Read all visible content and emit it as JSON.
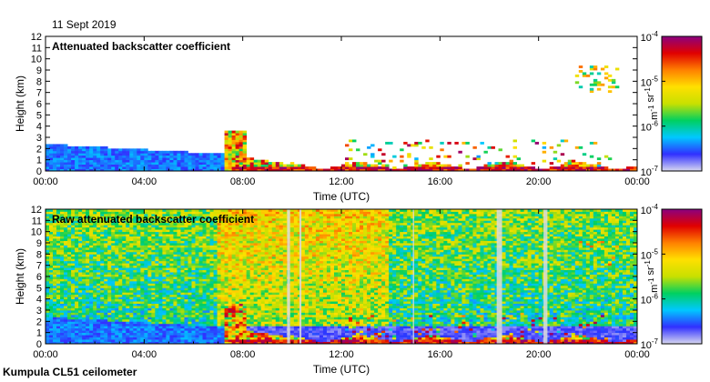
{
  "header": {
    "date": "11 Sept 2019"
  },
  "footer": {
    "site": "Kumpula CL51 ceilometer"
  },
  "colors": {
    "axis": "#000000",
    "background": "#ffffff",
    "colormap": [
      "#d8d8f0",
      "#3030ff",
      "#00c8ff",
      "#00d060",
      "#c8e000",
      "#ffe000",
      "#ff8000",
      "#e00000",
      "#8b0080"
    ]
  },
  "chart_data": [
    {
      "type": "heatmap",
      "title": "Attenuated backscatter coefficient",
      "xlabel": "Time (UTC)",
      "ylabel": "Height (km)",
      "x_ticks": [
        "00:00",
        "04:00",
        "08:00",
        "12:00",
        "16:00",
        "20:00",
        "00:00"
      ],
      "y_ticks": [
        "0",
        "1",
        "2",
        "3",
        "4",
        "5",
        "6",
        "7",
        "8",
        "9",
        "10",
        "11",
        "12"
      ],
      "xlim_hours": [
        0,
        24
      ],
      "ylim_km": [
        0,
        12
      ],
      "colorbar": {
        "scale": "log",
        "range": [
          1e-07,
          0.0001
        ],
        "labels": [
          "10",
          "10",
          "10",
          "10"
        ],
        "exponents": [
          "-4",
          "-5",
          "-6",
          "-7"
        ],
        "unit_base": [
          "m",
          "sr"
        ],
        "unit_exponents": [
          "-1",
          "-1"
        ]
      }
    },
    {
      "type": "heatmap",
      "title": "Raw attenuated backscatter coefficient",
      "xlabel": "Time (UTC)",
      "ylabel": "Height (km)",
      "x_ticks": [
        "00:00",
        "04:00",
        "08:00",
        "12:00",
        "16:00",
        "20:00",
        "00:00"
      ],
      "y_ticks": [
        "0",
        "1",
        "2",
        "3",
        "4",
        "5",
        "6",
        "7",
        "8",
        "9",
        "10",
        "11",
        "12"
      ],
      "xlim_hours": [
        0,
        24
      ],
      "ylim_km": [
        0,
        12
      ],
      "colorbar": {
        "scale": "log",
        "range": [
          1e-07,
          0.0001
        ],
        "labels": [
          "10",
          "10",
          "10",
          "10"
        ],
        "exponents": [
          "-4",
          "-5",
          "-6",
          "-7"
        ],
        "unit_base": [
          "m",
          "sr"
        ],
        "unit_exponents": [
          "-1",
          "-1"
        ]
      }
    }
  ]
}
